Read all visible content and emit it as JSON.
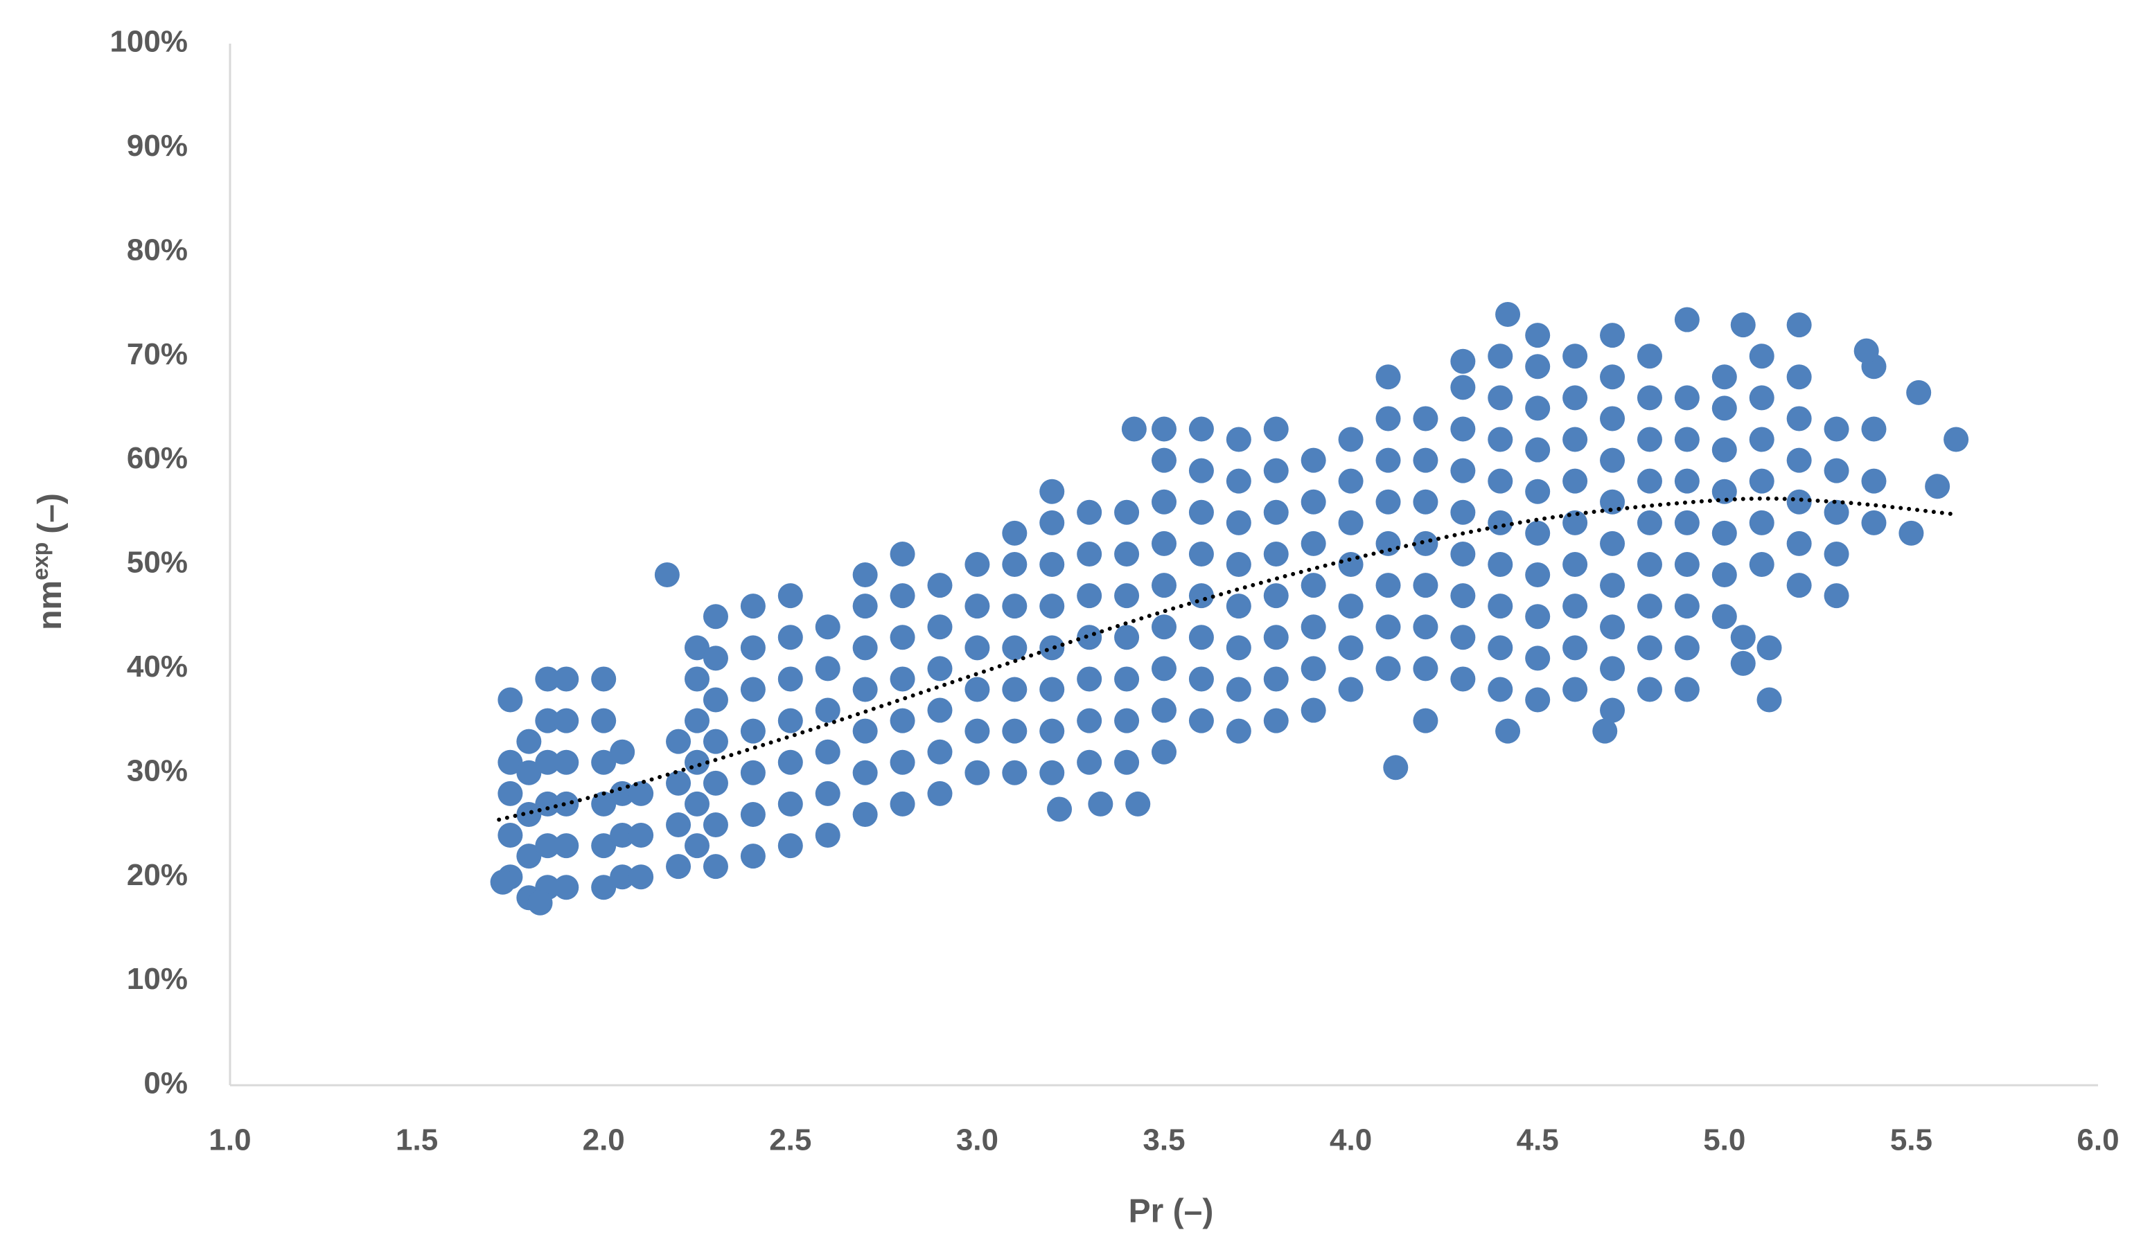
{
  "chart_data": {
    "type": "scatter",
    "xlabel": "Pr (–)",
    "ylabel": {
      "main": "nm",
      "sup": "exp",
      "unit": "(–)"
    },
    "xlim": [
      1.0,
      6.0
    ],
    "ylim": [
      0,
      100
    ],
    "xticks": [
      {
        "value": 1.0,
        "label": "1.0"
      },
      {
        "value": 1.5,
        "label": "1.5"
      },
      {
        "value": 2.0,
        "label": "2.0"
      },
      {
        "value": 2.5,
        "label": "2.5"
      },
      {
        "value": 3.0,
        "label": "3.0"
      },
      {
        "value": 3.5,
        "label": "3.5"
      },
      {
        "value": 4.0,
        "label": "4.0"
      },
      {
        "value": 4.5,
        "label": "4.5"
      },
      {
        "value": 5.0,
        "label": "5.0"
      },
      {
        "value": 5.5,
        "label": "5.5"
      },
      {
        "value": 6.0,
        "label": "6.0"
      }
    ],
    "yticks": [
      {
        "value": 0,
        "label": "0%"
      },
      {
        "value": 10,
        "label": "10%"
      },
      {
        "value": 20,
        "label": "20%"
      },
      {
        "value": 30,
        "label": "30%"
      },
      {
        "value": 40,
        "label": "40%"
      },
      {
        "value": 50,
        "label": "50%"
      },
      {
        "value": 60,
        "label": "60%"
      },
      {
        "value": 70,
        "label": "70%"
      },
      {
        "value": 80,
        "label": "80%"
      },
      {
        "value": 90,
        "label": "90%"
      },
      {
        "value": 100,
        "label": "100%"
      }
    ],
    "grid": false,
    "series": [
      {
        "color": "#4f81bd",
        "x": [
          1.75,
          1.75,
          1.75,
          1.75,
          1.8,
          1.8,
          1.8,
          1.8,
          1.8,
          1.85,
          1.85,
          1.85,
          1.85,
          1.85,
          1.85,
          1.9,
          1.9,
          1.9,
          1.9,
          1.9,
          1.9,
          2.0,
          2.0,
          2.0,
          2.0,
          2.0,
          2.0,
          2.05,
          2.05,
          2.05,
          2.05,
          2.1,
          2.1,
          2.1,
          2.2,
          2.2,
          2.2,
          2.2,
          2.25,
          2.25,
          2.25,
          2.25,
          2.25,
          2.25,
          2.3,
          2.3,
          2.3,
          2.3,
          2.3,
          2.3,
          2.3,
          2.4,
          2.4,
          2.4,
          2.4,
          2.4,
          2.4,
          2.4,
          2.5,
          2.5,
          2.5,
          2.5,
          2.5,
          2.5,
          2.5,
          2.6,
          2.6,
          2.6,
          2.6,
          2.6,
          2.6,
          2.7,
          2.7,
          2.7,
          2.7,
          2.7,
          2.7,
          2.7,
          2.8,
          2.8,
          2.8,
          2.8,
          2.8,
          2.8,
          2.8,
          2.9,
          2.9,
          2.9,
          2.9,
          2.9,
          2.9,
          3.0,
          3.0,
          3.0,
          3.0,
          3.0,
          3.0,
          3.1,
          3.1,
          3.1,
          3.1,
          3.1,
          3.1,
          3.1,
          3.2,
          3.2,
          3.2,
          3.2,
          3.2,
          3.2,
          3.2,
          3.2,
          3.3,
          3.3,
          3.3,
          3.3,
          3.3,
          3.3,
          3.3,
          3.4,
          3.4,
          3.4,
          3.4,
          3.4,
          3.4,
          3.4,
          3.5,
          3.5,
          3.5,
          3.5,
          3.5,
          3.5,
          3.5,
          3.5,
          3.5,
          3.6,
          3.6,
          3.6,
          3.6,
          3.6,
          3.6,
          3.6,
          3.6,
          3.7,
          3.7,
          3.7,
          3.7,
          3.7,
          3.7,
          3.7,
          3.7,
          3.8,
          3.8,
          3.8,
          3.8,
          3.8,
          3.8,
          3.8,
          3.8,
          3.9,
          3.9,
          3.9,
          3.9,
          3.9,
          3.9,
          3.9,
          4.0,
          4.0,
          4.0,
          4.0,
          4.0,
          4.0,
          4.0,
          4.1,
          4.1,
          4.1,
          4.1,
          4.1,
          4.1,
          4.1,
          4.1,
          4.2,
          4.2,
          4.2,
          4.2,
          4.2,
          4.2,
          4.2,
          4.3,
          4.3,
          4.3,
          4.3,
          4.3,
          4.3,
          4.3,
          4.3,
          4.4,
          4.4,
          4.4,
          4.4,
          4.4,
          4.4,
          4.4,
          4.4,
          4.4,
          4.5,
          4.5,
          4.5,
          4.5,
          4.5,
          4.5,
          4.5,
          4.5,
          4.5,
          4.5,
          4.6,
          4.6,
          4.6,
          4.6,
          4.6,
          4.6,
          4.6,
          4.6,
          4.6,
          4.7,
          4.7,
          4.7,
          4.7,
          4.7,
          4.7,
          4.7,
          4.7,
          4.7,
          4.7,
          4.8,
          4.8,
          4.8,
          4.8,
          4.8,
          4.8,
          4.8,
          4.8,
          4.8,
          4.9,
          4.9,
          4.9,
          4.9,
          4.9,
          4.9,
          4.9,
          4.9,
          5.0,
          5.0,
          5.0,
          5.0,
          5.0,
          5.0,
          5.0,
          5.1,
          5.1,
          5.1,
          5.1,
          5.1,
          5.1,
          5.2,
          5.2,
          5.2,
          5.2,
          5.2,
          5.2,
          5.3,
          5.3,
          5.3,
          5.3,
          5.3,
          5.4,
          5.4,
          5.4,
          5.4,
          2.17,
          1.75,
          3.22,
          3.33,
          3.43,
          3.42,
          4.42,
          5.12,
          5.62,
          5.57,
          5.5,
          4.12,
          4.2,
          5.05,
          5.05,
          5.12,
          4.9,
          4.42,
          5.2,
          5.05,
          5.38,
          5.52,
          4.68,
          4.3,
          1.73,
          1.83
        ],
        "values": [
          20,
          24,
          28,
          31,
          18,
          22,
          26,
          30,
          33,
          19,
          23,
          27,
          31,
          35,
          39,
          19,
          23,
          27,
          31,
          35,
          39,
          19,
          23,
          27,
          31,
          35,
          39,
          20,
          24,
          28,
          32,
          20,
          24,
          28,
          21,
          25,
          29,
          33,
          23,
          27,
          31,
          35,
          39,
          42,
          21,
          25,
          29,
          33,
          37,
          41,
          45,
          22,
          26,
          30,
          34,
          38,
          42,
          46,
          23,
          27,
          31,
          35,
          39,
          43,
          47,
          24,
          28,
          32,
          36,
          40,
          44,
          26,
          30,
          34,
          38,
          42,
          46,
          49,
          27,
          31,
          35,
          39,
          43,
          47,
          51,
          28,
          32,
          36,
          40,
          44,
          48,
          30,
          34,
          38,
          42,
          46,
          50,
          30,
          34,
          38,
          42,
          46,
          50,
          53,
          30,
          34,
          38,
          42,
          46,
          50,
          54,
          57,
          31,
          35,
          39,
          43,
          47,
          51,
          55,
          31,
          35,
          39,
          43,
          47,
          51,
          55,
          32,
          36,
          40,
          44,
          48,
          52,
          56,
          60,
          63,
          35,
          39,
          43,
          47,
          51,
          55,
          59,
          63,
          34,
          38,
          42,
          46,
          50,
          54,
          58,
          62,
          35,
          39,
          43,
          47,
          51,
          55,
          59,
          63,
          36,
          40,
          44,
          48,
          52,
          56,
          60,
          38,
          42,
          46,
          50,
          54,
          58,
          62,
          40,
          44,
          48,
          52,
          56,
          60,
          64,
          68,
          40,
          44,
          48,
          52,
          56,
          60,
          64,
          39,
          43,
          47,
          51,
          55,
          59,
          63,
          67,
          38,
          42,
          46,
          50,
          54,
          58,
          62,
          66,
          70,
          37,
          41,
          45,
          49,
          53,
          57,
          61,
          65,
          69,
          72,
          38,
          42,
          46,
          50,
          54,
          58,
          62,
          66,
          70,
          36,
          40,
          44,
          48,
          52,
          56,
          60,
          64,
          68,
          72,
          38,
          42,
          46,
          50,
          54,
          58,
          62,
          66,
          70,
          38,
          42,
          46,
          50,
          54,
          58,
          62,
          66,
          45,
          49,
          53,
          57,
          61,
          65,
          68,
          50,
          54,
          58,
          62,
          66,
          70,
          48,
          52,
          56,
          60,
          64,
          68,
          47,
          51,
          55,
          59,
          63,
          54,
          58,
          63,
          69,
          49,
          37,
          26.5,
          27,
          27,
          63,
          34,
          37,
          62,
          57.5,
          53,
          30.5,
          35,
          40.5,
          43,
          42,
          73.5,
          74,
          73,
          73,
          70.5,
          66.5,
          34,
          69.5,
          19.5,
          17.5
        ]
      }
    ],
    "trendline": {
      "color": "#000000",
      "x": [
        1.72,
        2.0,
        2.5,
        3.0,
        3.5,
        4.0,
        4.5,
        5.0,
        5.3,
        5.62
      ],
      "values": [
        25.5,
        28,
        33.5,
        39.5,
        45.5,
        50.5,
        54.3,
        56.2,
        56,
        54.8
      ]
    }
  }
}
